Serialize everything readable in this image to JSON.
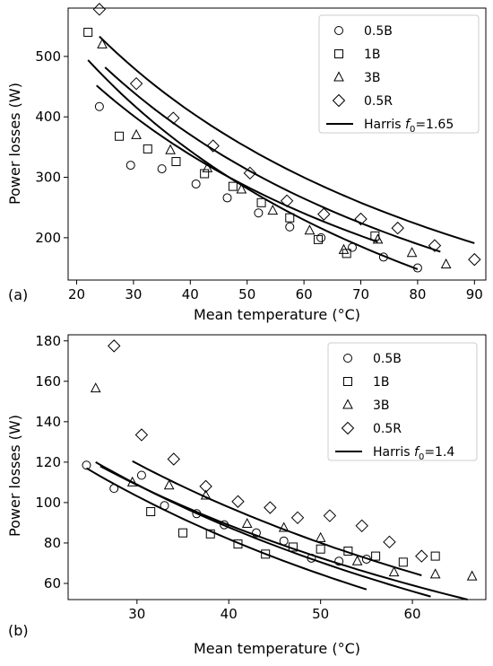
{
  "chart_data": [
    {
      "type": "scatter",
      "panel_label": "(a)",
      "xlabel": "Mean temperature (°C)",
      "ylabel": "Power losses (W)",
      "xlim": [
        18.5,
        92
      ],
      "ylim": [
        130,
        580
      ],
      "xticks": [
        20,
        30,
        40,
        50,
        60,
        70,
        80,
        90
      ],
      "yticks": [
        200,
        300,
        400,
        500
      ],
      "grid": false,
      "legend_position": "top-right",
      "series": [
        {
          "name": "0.5B",
          "marker": "circle",
          "x": [
            24,
            29.5,
            35,
            41,
            46.5,
            52,
            57.5,
            63,
            68.5,
            74,
            80
          ],
          "y": [
            417,
            320,
            314,
            289,
            266,
            241,
            218,
            200,
            184,
            168,
            150
          ]
        },
        {
          "name": "1B",
          "marker": "square",
          "x": [
            22,
            27.5,
            32.5,
            37.5,
            42.5,
            47.5,
            52.5,
            57.5,
            62.5,
            67.5,
            72.5
          ],
          "y": [
            540,
            368,
            347,
            326,
            306,
            285,
            258,
            233,
            197,
            174,
            203
          ]
        },
        {
          "name": "3B",
          "marker": "triangle",
          "x": [
            24.5,
            30.5,
            36.5,
            43,
            49,
            54.5,
            61,
            67,
            73,
            79,
            85
          ],
          "y": [
            520,
            370,
            345,
            315,
            280,
            245,
            212,
            180,
            197,
            175,
            156
          ]
        },
        {
          "name": "0.5R",
          "marker": "diamond",
          "x": [
            24,
            30.5,
            37,
            44,
            50.5,
            57,
            63.5,
            70,
            76.5,
            83,
            90
          ],
          "y": [
            578,
            455,
            398,
            352,
            307,
            261,
            239,
            231,
            216,
            187,
            164
          ]
        }
      ],
      "model_curves": {
        "name_prefix": "Harris ",
        "name_symbol": "f",
        "name_subscript": "0",
        "name_suffix": "=1.65",
        "curves": [
          {
            "x": [
              22,
              80
            ],
            "y": [
              494,
              148
            ]
          },
          {
            "x": [
              23.5,
              73
            ],
            "y": [
              452,
              193
            ]
          },
          {
            "x": [
              25,
              84
            ],
            "y": [
              482,
              177
            ]
          },
          {
            "x": [
              24,
              90
            ],
            "y": [
              533,
              191
            ]
          }
        ]
      }
    },
    {
      "type": "scatter",
      "panel_label": "(b)",
      "xlabel": "Mean temperature (°C)",
      "ylabel": "Power losses (W)",
      "xlim": [
        22.5,
        68
      ],
      "ylim": [
        52,
        183
      ],
      "xticks": [
        30,
        40,
        50,
        60
      ],
      "yticks": [
        60,
        80,
        100,
        120,
        140,
        160,
        180
      ],
      "grid": false,
      "legend_position": "top-right",
      "series": [
        {
          "name": "0.5B",
          "marker": "circle",
          "x": [
            24.5,
            27.5,
            30.5,
            33,
            36.5,
            39.5,
            43,
            46,
            49,
            52,
            55
          ],
          "y": [
            118.5,
            107,
            113.5,
            98.5,
            94.5,
            89,
            85,
            81,
            72.5,
            71,
            72
          ]
        },
        {
          "name": "1B",
          "marker": "square",
          "x": [
            31.5,
            35,
            38,
            41,
            44,
            47,
            50,
            53,
            56,
            59,
            62.5
          ],
          "y": [
            95.5,
            85,
            84.5,
            79.5,
            74.5,
            78,
            77,
            76,
            73.5,
            70.5,
            73.5
          ]
        },
        {
          "name": "3B",
          "marker": "triangle",
          "x": [
            25.5,
            29.5,
            33.5,
            37.5,
            42,
            46,
            50,
            54,
            58,
            62.5,
            66.5
          ],
          "y": [
            156.5,
            110,
            108.5,
            103.5,
            89.5,
            87.5,
            82.5,
            71,
            65.5,
            64.5,
            63.5
          ]
        },
        {
          "name": "0.5R",
          "marker": "diamond",
          "x": [
            27.5,
            30.5,
            34,
            37.5,
            41,
            44.5,
            47.5,
            51,
            54.5,
            57.5,
            61
          ],
          "y": [
            177.5,
            133.5,
            121.5,
            108,
            100.5,
            97.5,
            92.5,
            93.5,
            88.5,
            80.5,
            73.5
          ]
        }
      ],
      "model_curves": {
        "name_prefix": "Harris ",
        "name_symbol": "f",
        "name_subscript": "0",
        "name_suffix": "=1.4",
        "curves": [
          {
            "x": [
              24.5,
              55
            ],
            "y": [
              117,
              57
            ]
          },
          {
            "x": [
              25.5,
              62
            ],
            "y": [
              120,
              53.5
            ]
          },
          {
            "x": [
              26,
              66
            ],
            "y": [
              118,
              52
            ]
          },
          {
            "x": [
              29.5,
              61
            ],
            "y": [
              120.5,
              64
            ]
          }
        ]
      }
    }
  ]
}
